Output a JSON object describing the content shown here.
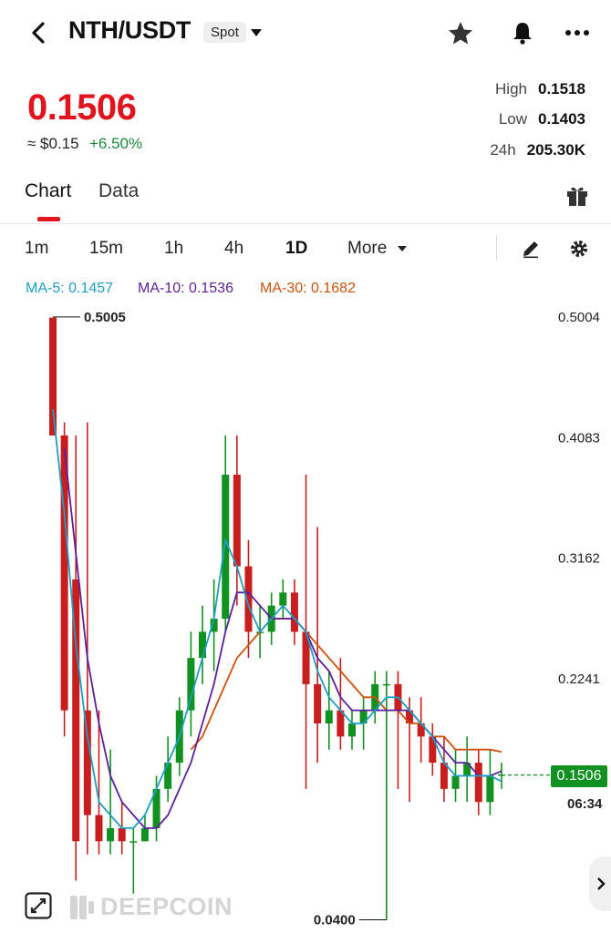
{
  "header": {
    "pair": "NTH/USDT",
    "market_type": "Spot",
    "icons": [
      "back-arrow-icon",
      "star-icon",
      "bell-icon",
      "more-icon"
    ]
  },
  "ticker": {
    "price": "0.1506",
    "usd_value": "≈ $0.15",
    "change": "+6.50%",
    "high_label": "High",
    "high": "0.1518",
    "low_label": "Low",
    "low": "0.1403",
    "vol_label": "24h",
    "vol": "205.30K"
  },
  "tabs": [
    {
      "label": "Chart"
    },
    {
      "label": "Data"
    }
  ],
  "intervals": [
    {
      "label": "1m"
    },
    {
      "label": "15m"
    },
    {
      "label": "1h"
    },
    {
      "label": "4h"
    },
    {
      "label": "1D",
      "selected": true
    },
    {
      "label": "More"
    }
  ],
  "ma": {
    "ma5_label": "MA-5:",
    "ma5": "0.1457",
    "ma10_label": "MA-10:",
    "ma10": "0.1536",
    "ma30_label": "MA-30:",
    "ma30": "0.1682"
  },
  "colors": {
    "up": "#11911f",
    "down": "#c81e1e",
    "ma5": "#1b9fc6",
    "ma10": "#5b1f9e",
    "ma30": "#d0500a",
    "accent": "#e0141c"
  },
  "chart_data": {
    "type": "candlestick",
    "title": "",
    "ylim": [
      0.04,
      0.5
    ],
    "y_ticks": [
      "0.5004",
      "0.4083",
      "0.3162",
      "0.2241"
    ],
    "max_label": "0.5005",
    "min_label": "0.0400",
    "last_price": "0.1506",
    "countdown": "06:34",
    "candles": [
      [
        0.5,
        0.5,
        0.41,
        0.41
      ],
      [
        0.41,
        0.42,
        0.18,
        0.2
      ],
      [
        0.3,
        0.41,
        0.07,
        0.1
      ],
      [
        0.2,
        0.42,
        0.09,
        0.12
      ],
      [
        0.12,
        0.2,
        0.09,
        0.1
      ],
      [
        0.1,
        0.17,
        0.09,
        0.11
      ],
      [
        0.11,
        0.13,
        0.09,
        0.1
      ],
      [
        0.1,
        0.11,
        0.06,
        0.1
      ],
      [
        0.1,
        0.12,
        0.1,
        0.11
      ],
      [
        0.11,
        0.15,
        0.1,
        0.14
      ],
      [
        0.14,
        0.18,
        0.13,
        0.16
      ],
      [
        0.16,
        0.21,
        0.15,
        0.2
      ],
      [
        0.2,
        0.26,
        0.18,
        0.24
      ],
      [
        0.24,
        0.28,
        0.22,
        0.26
      ],
      [
        0.26,
        0.3,
        0.23,
        0.27
      ],
      [
        0.27,
        0.41,
        0.26,
        0.38
      ],
      [
        0.38,
        0.41,
        0.28,
        0.31
      ],
      [
        0.31,
        0.33,
        0.24,
        0.26
      ],
      [
        0.26,
        0.28,
        0.24,
        0.26
      ],
      [
        0.26,
        0.29,
        0.25,
        0.28
      ],
      [
        0.28,
        0.3,
        0.27,
        0.29
      ],
      [
        0.29,
        0.3,
        0.25,
        0.26
      ],
      [
        0.26,
        0.38,
        0.14,
        0.22
      ],
      [
        0.22,
        0.34,
        0.16,
        0.19
      ],
      [
        0.19,
        0.23,
        0.17,
        0.2
      ],
      [
        0.2,
        0.24,
        0.17,
        0.18
      ],
      [
        0.18,
        0.2,
        0.17,
        0.19
      ],
      [
        0.19,
        0.21,
        0.17,
        0.2
      ],
      [
        0.2,
        0.23,
        0.19,
        0.22
      ],
      [
        0.22,
        0.23,
        0.04,
        0.22
      ],
      [
        0.22,
        0.23,
        0.14,
        0.2
      ],
      [
        0.2,
        0.21,
        0.13,
        0.19
      ],
      [
        0.19,
        0.21,
        0.16,
        0.18
      ],
      [
        0.18,
        0.19,
        0.15,
        0.16
      ],
      [
        0.16,
        0.18,
        0.13,
        0.14
      ],
      [
        0.14,
        0.17,
        0.13,
        0.15
      ],
      [
        0.15,
        0.18,
        0.13,
        0.16
      ],
      [
        0.16,
        0.17,
        0.12,
        0.13
      ],
      [
        0.13,
        0.17,
        0.12,
        0.15
      ],
      [
        0.15,
        0.16,
        0.14,
        0.151
      ]
    ],
    "ma5": [
      0.43,
      0.35,
      0.25,
      0.18,
      0.13,
      0.12,
      0.11,
      0.11,
      0.12,
      0.14,
      0.16,
      0.18,
      0.21,
      0.24,
      0.27,
      0.33,
      0.31,
      0.28,
      0.26,
      0.27,
      0.28,
      0.27,
      0.26,
      0.23,
      0.21,
      0.2,
      0.19,
      0.19,
      0.2,
      0.21,
      0.21,
      0.2,
      0.19,
      0.18,
      0.16,
      0.15,
      0.15,
      0.15,
      0.15,
      0.1457
    ],
    "ma10": [
      null,
      0.4,
      0.32,
      0.24,
      0.19,
      0.15,
      0.13,
      0.12,
      0.11,
      0.11,
      0.12,
      0.14,
      0.16,
      0.19,
      0.22,
      0.26,
      0.29,
      0.29,
      0.28,
      0.27,
      0.27,
      0.27,
      0.26,
      0.24,
      0.23,
      0.21,
      0.2,
      0.2,
      0.2,
      0.2,
      0.2,
      0.2,
      0.19,
      0.18,
      0.17,
      0.16,
      0.16,
      0.15,
      0.15,
      0.1536
    ],
    "ma30": [
      null,
      null,
      null,
      null,
      null,
      null,
      null,
      null,
      null,
      null,
      null,
      null,
      0.17,
      0.18,
      0.2,
      0.22,
      0.24,
      0.25,
      0.26,
      0.27,
      0.27,
      0.27,
      0.26,
      0.25,
      0.24,
      0.23,
      0.22,
      0.21,
      0.21,
      0.2,
      0.2,
      0.19,
      0.19,
      0.18,
      0.18,
      0.17,
      0.17,
      0.17,
      0.17,
      0.1682
    ]
  },
  "footer": {
    "brand": "DEEPCOIN"
  }
}
